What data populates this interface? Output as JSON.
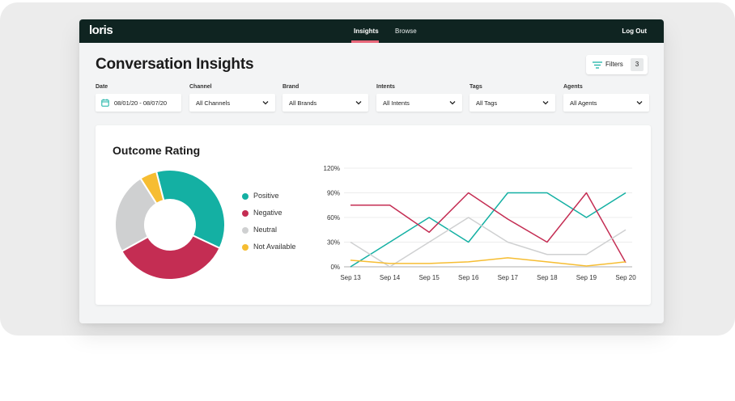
{
  "app": {
    "logo": "loris"
  },
  "nav": {
    "items": [
      "Insights",
      "Browse"
    ],
    "active": "Insights",
    "logout": "Log Out"
  },
  "page": {
    "title": "Conversation Insights"
  },
  "filters_button": {
    "label": "Filters",
    "count": "3"
  },
  "fields": [
    {
      "label": "Date",
      "value": "08/01/20 - 08/07/20",
      "icon": "calendar-icon"
    },
    {
      "label": "Channel",
      "value": "All Channels",
      "icon": "chevron-down-icon"
    },
    {
      "label": "Brand",
      "value": "All Brands",
      "icon": "chevron-down-icon"
    },
    {
      "label": "Intents",
      "value": "All Intents",
      "icon": "chevron-down-icon"
    },
    {
      "label": "Tags",
      "value": "All Tags",
      "icon": "chevron-down-icon"
    },
    {
      "label": "Agents",
      "value": "All Agents",
      "icon": "chevron-down-icon"
    }
  ],
  "colors": {
    "topbar": "#0f2421",
    "accent": "#e8677a",
    "positive": "#14b0a3",
    "negative": "#c42d53",
    "neutral": "#cfd0d1",
    "not_available": "#f6bd32"
  },
  "outcome_card": {
    "title": "Outcome Rating",
    "legend": [
      {
        "label": "Positive",
        "color": "#14b0a3"
      },
      {
        "label": "Negative",
        "color": "#c42d53"
      },
      {
        "label": "Neutral",
        "color": "#cfd0d1"
      },
      {
        "label": "Not Available",
        "color": "#f6bd32"
      }
    ]
  },
  "chart_data": [
    {
      "type": "pie",
      "categories": [
        "Positive",
        "Negative",
        "Neutral",
        "Not Available"
      ],
      "values": [
        36,
        35,
        24,
        5
      ],
      "colors": [
        "#14b0a3",
        "#c42d53",
        "#cfd0d1",
        "#f6bd32"
      ]
    },
    {
      "type": "line",
      "x": [
        "Sep 13",
        "Sep 14",
        "Sep 15",
        "Sep 16",
        "Sep 17",
        "Sep 18",
        "Sep 19",
        "Sep 20"
      ],
      "ylim": [
        0,
        120
      ],
      "yticks": [
        "0%",
        "30%",
        "60%",
        "90%",
        "120%"
      ],
      "grid": true,
      "series": [
        {
          "name": "Positive",
          "color": "#14b0a3",
          "values": [
            0,
            30,
            60,
            30,
            90,
            90,
            60,
            90
          ]
        },
        {
          "name": "Negative",
          "color": "#c42d53",
          "values": [
            75,
            75,
            42,
            90,
            58,
            30,
            90,
            5
          ]
        },
        {
          "name": "Neutral",
          "color": "#cfd0d1",
          "values": [
            30,
            0,
            30,
            60,
            30,
            15,
            15,
            45
          ]
        },
        {
          "name": "Not Available",
          "color": "#f6bd32",
          "values": [
            8,
            4,
            4,
            6,
            11,
            6,
            1,
            6
          ]
        }
      ]
    }
  ]
}
